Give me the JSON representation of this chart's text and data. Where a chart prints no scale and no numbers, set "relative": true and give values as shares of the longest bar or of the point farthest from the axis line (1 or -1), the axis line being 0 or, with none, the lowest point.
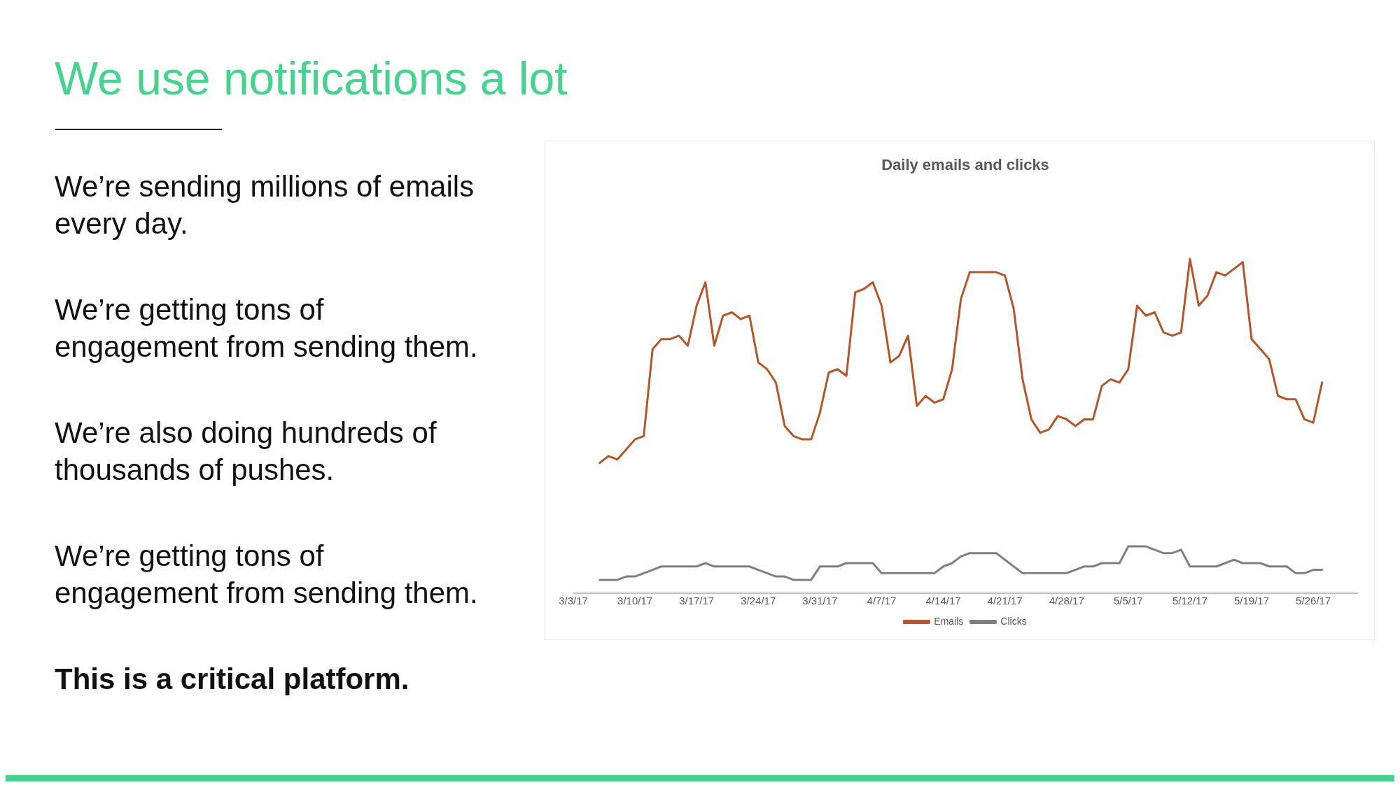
{
  "chart_data": {
    "type": "line",
    "title": "Daily emails and clicks",
    "annotations": [
      "We use notifications a lot",
      "We’re sending millions of emails every day.",
      "We’re getting tons of engagement from sending them.",
      "We’re also doing hundreds of thousands of pushes.",
      "We’re getting tons of engagement from sending them.",
      "This is a critical platform."
    ],
    "relative": true,
    "legend": "bottom",
    "marker": "none",
    "line_style": "solid",
    "x": [
      "--03-06",
      "--03-07",
      "--03-08",
      "--03-09",
      "--03-10",
      "--03-11",
      "--03-12",
      "--03-13",
      "--03-14",
      "--03-15",
      "--03-16",
      "--03-17",
      "--03-18",
      "--03-19",
      "--03-20",
      "--03-21",
      "--03-22",
      "--03-23",
      "--03-24",
      "--03-25",
      "--03-26",
      "--03-27",
      "--03-28",
      "--03-29",
      "--03-30",
      "--03-31",
      "--04-01",
      "--04-02",
      "--04-03",
      "--04-04",
      "--04-05",
      "--04-06",
      "--04-07",
      "--04-08",
      "--04-09",
      "--04-10",
      "--04-11",
      "--04-12",
      "--04-13",
      "--04-14",
      "--04-15",
      "--04-16",
      "--04-17",
      "--04-18",
      "--04-19",
      "--04-20",
      "--04-21",
      "--04-22",
      "--04-23",
      "--04-24",
      "--04-25",
      "--04-26",
      "--04-27",
      "--04-28",
      "--04-29",
      "--04-30",
      "--05-01",
      "--05-02",
      "--05-03",
      "--05-04",
      "--05-05",
      "--05-06",
      "--05-07",
      "--05-08",
      "--05-09",
      "--05-10",
      "--05-11",
      "--05-12",
      "--05-13",
      "--05-14",
      "--05-15",
      "--05-16",
      "--05-17",
      "--05-18",
      "--05-19",
      "--05-20",
      "--05-21",
      "--05-22",
      "--05-23",
      "--05-24",
      "--05-25",
      "--05-26",
      "--05-27"
    ],
    "xlim": [
      "--03-03",
      "--05-31"
    ],
    "xticks": [
      {
        "value": "--03-03",
        "label": "3/3/17"
      },
      {
        "value": "--03-10",
        "label": "3/10/17"
      },
      {
        "value": "--03-17",
        "label": "3/17/17"
      },
      {
        "value": "--03-24",
        "label": "3/24/17"
      },
      {
        "value": "--03-31",
        "label": "3/31/17"
      },
      {
        "value": "--04-07",
        "label": "4/7/17"
      },
      {
        "value": "--04-14",
        "label": "4/14/17"
      },
      {
        "value": "--04-21",
        "label": "4/21/17"
      },
      {
        "value": "--04-28",
        "label": "4/28/17"
      },
      {
        "value": "--05-05",
        "label": "5/5/17"
      },
      {
        "value": "--05-12",
        "label": "5/12/17"
      },
      {
        "value": "--05-19",
        "label": "5/19/17"
      },
      {
        "value": "--05-26",
        "label": "5/26/17"
      }
    ],
    "series": [
      {
        "name": "Emails",
        "color": "#b5562a",
        "values": [
          0.39,
          0.41,
          0.4,
          0.43,
          0.46,
          0.47,
          0.73,
          0.76,
          0.76,
          0.77,
          0.74,
          0.86,
          0.93,
          0.74,
          0.83,
          0.84,
          0.82,
          0.83,
          0.69,
          0.67,
          0.63,
          0.5,
          0.47,
          0.46,
          0.46,
          0.54,
          0.66,
          0.67,
          0.65,
          0.9,
          0.91,
          0.93,
          0.86,
          0.69,
          0.71,
          0.77,
          0.56,
          0.59,
          0.57,
          0.58,
          0.67,
          0.88,
          0.96,
          0.96,
          0.96,
          0.96,
          0.95,
          0.85,
          0.64,
          0.52,
          0.48,
          0.49,
          0.53,
          0.52,
          0.5,
          0.52,
          0.52,
          0.62,
          0.64,
          0.63,
          0.67,
          0.86,
          0.83,
          0.84,
          0.78,
          0.77,
          0.78,
          1,
          0.86,
          0.89,
          0.96,
          0.95,
          0.97,
          0.99,
          0.76,
          0.73,
          0.7,
          0.59,
          0.58,
          0.58,
          0.52,
          0.51,
          0.63
        ]
      },
      {
        "name": "Clicks",
        "color": "#7f7f7f",
        "values": [
          0.04,
          0.04,
          0.04,
          0.05,
          0.05,
          0.06,
          0.07,
          0.08,
          0.08,
          0.08,
          0.08,
          0.08,
          0.09,
          0.08,
          0.08,
          0.08,
          0.08,
          0.08,
          0.07,
          0.06,
          0.05,
          0.05,
          0.04,
          0.04,
          0.04,
          0.08,
          0.08,
          0.08,
          0.09,
          0.09,
          0.09,
          0.09,
          0.06,
          0.06,
          0.06,
          0.06,
          0.06,
          0.06,
          0.06,
          0.08,
          0.09,
          0.11,
          0.12,
          0.12,
          0.12,
          0.12,
          0.1,
          0.08,
          0.06,
          0.06,
          0.06,
          0.06,
          0.06,
          0.06,
          0.07,
          0.08,
          0.08,
          0.09,
          0.09,
          0.09,
          0.14,
          0.14,
          0.14,
          0.13,
          0.12,
          0.12,
          0.13,
          0.08,
          0.08,
          0.08,
          0.08,
          0.09,
          0.1,
          0.09,
          0.09,
          0.09,
          0.08,
          0.08,
          0.08,
          0.06,
          0.06,
          0.07,
          0.07
        ]
      }
    ]
  }
}
